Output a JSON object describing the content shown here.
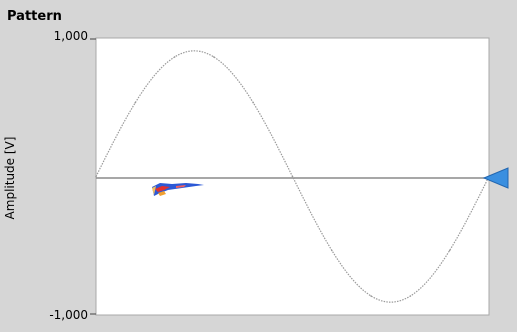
{
  "graph": {
    "title": "Pattern",
    "ylabel": "Amplitude [V]",
    "ytick_top": "1,000",
    "ytick_bottom": "-1,000",
    "plot_bg": "#ffffff",
    "curve_color": "#9a9a9a",
    "cursor_color": "#3a8fe0"
  },
  "chart_data": {
    "type": "line",
    "ylabel": "Amplitude [V]",
    "ylim": [
      -1000,
      1000
    ],
    "series": [
      {
        "values": [
          0,
          588,
          951,
          951,
          588,
          0,
          -588,
          -951,
          -951,
          -588,
          0
        ]
      }
    ]
  }
}
